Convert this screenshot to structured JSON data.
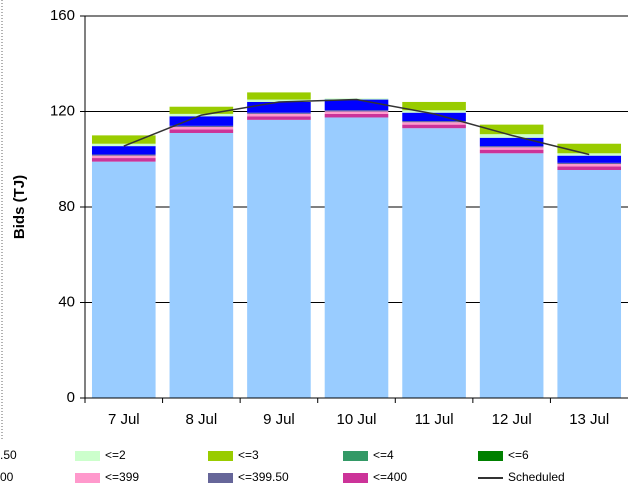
{
  "chart_data": {
    "type": "bar",
    "stacked": true,
    "y_label": "Bids (TJ)",
    "categories": [
      "7 Jul",
      "8 Jul",
      "9 Jul",
      "10 Jul",
      "11 Jul",
      "12 Jul",
      "13 Jul"
    ],
    "ylim": [
      0,
      160
    ],
    "yticks": [
      0,
      40,
      80,
      120,
      160
    ],
    "grid": true,
    "series": [
      {
        "name": ".50",
        "color": "#99ccff",
        "values": [
          99,
          111,
          116.5,
          117.5,
          113,
          102.5,
          95.5
        ]
      },
      {
        "name": "<=400",
        "color": "#cc3399",
        "values": [
          1.5,
          1.5,
          1.5,
          1.5,
          1.5,
          1.5,
          1.5
        ]
      },
      {
        "name": "<=399",
        "color": "#ff99cc",
        "values": [
          1,
          1,
          1,
          1,
          1,
          1,
          1
        ]
      },
      {
        "name": "<=399.50",
        "color": "#666699",
        "values": [
          0.5,
          0.5,
          0.5,
          0.5,
          0.5,
          0.5,
          0.5
        ]
      },
      {
        "name": "00",
        "color": "#0000ff",
        "values": [
          3.5,
          4,
          4.5,
          4.5,
          3.5,
          3.5,
          3
        ]
      },
      {
        "name": "<=2",
        "color": "#ccffcc",
        "values": [
          1,
          1,
          1,
          0.5,
          1,
          1.5,
          1
        ]
      },
      {
        "name": "<=3",
        "color": "#99cc00",
        "values": [
          3.5,
          3,
          3,
          0,
          3.5,
          4,
          4
        ]
      },
      {
        "name": "<=4",
        "color": "#339966",
        "values": [
          0,
          0,
          0,
          0,
          0,
          0,
          0
        ]
      },
      {
        "name": "<=6",
        "color": "#008000",
        "values": [
          0,
          0,
          0,
          0,
          0,
          0,
          0
        ]
      },
      {
        "name": "Scheduled",
        "type": "line",
        "color": "#333333",
        "values": [
          105.5,
          118.5,
          124,
          125,
          119,
          110,
          102
        ]
      }
    ]
  }
}
